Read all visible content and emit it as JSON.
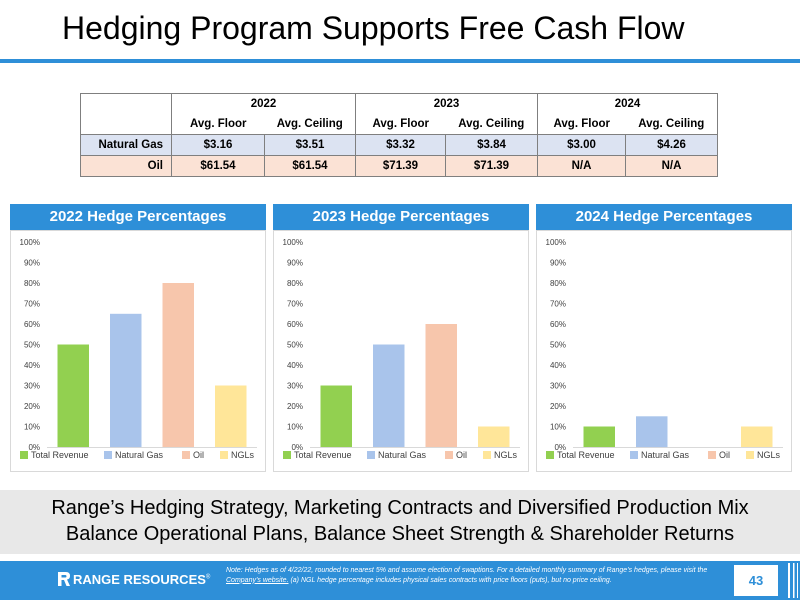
{
  "title": "Hedging Program Supports Free Cash Flow",
  "table": {
    "years": [
      "2022",
      "2023",
      "2024"
    ],
    "subheaders": [
      "Avg. Floor",
      "Avg. Ceiling"
    ],
    "rows": [
      {
        "label": "Natural Gas",
        "values": [
          "$3.16",
          "$3.51",
          "$3.32",
          "$3.84",
          "$3.00",
          "$4.26"
        ]
      },
      {
        "label": "Oil",
        "values": [
          "$61.54",
          "$61.54",
          "$71.39",
          "$71.39",
          "N/A",
          "N/A"
        ]
      }
    ]
  },
  "chart_data": [
    {
      "type": "bar",
      "title": "2022 Hedge Percentages",
      "categories": [
        "Total Revenue",
        "Natural Gas",
        "Oil",
        "NGLs"
      ],
      "values": [
        50,
        65,
        80,
        30
      ],
      "unit": "%",
      "ylim": [
        0,
        100
      ],
      "yticks": [
        "0%",
        "10%",
        "20%",
        "30%",
        "40%",
        "50%",
        "60%",
        "70%",
        "80%",
        "90%",
        "100%"
      ],
      "grid": false,
      "legend": "bottom",
      "colors": [
        "#92d050",
        "#a9c4eb",
        "#f7c6ac",
        "#ffe699"
      ]
    },
    {
      "type": "bar",
      "title": "2023 Hedge Percentages",
      "categories": [
        "Total Revenue",
        "Natural Gas",
        "Oil",
        "NGLs"
      ],
      "values": [
        30,
        50,
        60,
        10
      ],
      "unit": "%",
      "ylim": [
        0,
        100
      ],
      "yticks": [
        "0%",
        "10%",
        "20%",
        "30%",
        "40%",
        "50%",
        "60%",
        "70%",
        "80%",
        "90%",
        "100%"
      ],
      "grid": false,
      "legend": "bottom",
      "colors": [
        "#92d050",
        "#a9c4eb",
        "#f7c6ac",
        "#ffe699"
      ]
    },
    {
      "type": "bar",
      "title": "2024 Hedge Percentages",
      "categories": [
        "Total Revenue",
        "Natural Gas",
        "Oil",
        "NGLs"
      ],
      "values": [
        10,
        15,
        0,
        10
      ],
      "unit": "%",
      "ylim": [
        0,
        100
      ],
      "yticks": [
        "0%",
        "10%",
        "20%",
        "30%",
        "40%",
        "50%",
        "60%",
        "70%",
        "80%",
        "90%",
        "100%"
      ],
      "grid": false,
      "legend": "bottom",
      "colors": [
        "#92d050",
        "#a9c4eb",
        "#f7c6ac",
        "#ffe699"
      ]
    }
  ],
  "banner": {
    "line1": "Range’s Hedging Strategy, Marketing Contracts and Diversified Production Mix",
    "line2": "Balance Operational Plans, Balance Sheet Strength & Shareholder Returns"
  },
  "footer": {
    "logo_text": "RANGE RESOURCES",
    "logo_mark": "®",
    "note_before": "Note: Hedges as of 4/22/22, rounded to nearest 5% and assume election of swaptions. For a detailed monthly summary of Range’s hedges, please visit the ",
    "note_link": "Company’s website.",
    "note_after": " (a) NGL hedge percentage includes physical sales contracts with price floors (puts), but no price ceiling.",
    "page_number": "43"
  },
  "colors": {
    "accent": "#2e8fd8",
    "banner_bg": "#e8e8e8",
    "gas_row": "#dce3f2",
    "oil_row": "#fbe2d5"
  }
}
